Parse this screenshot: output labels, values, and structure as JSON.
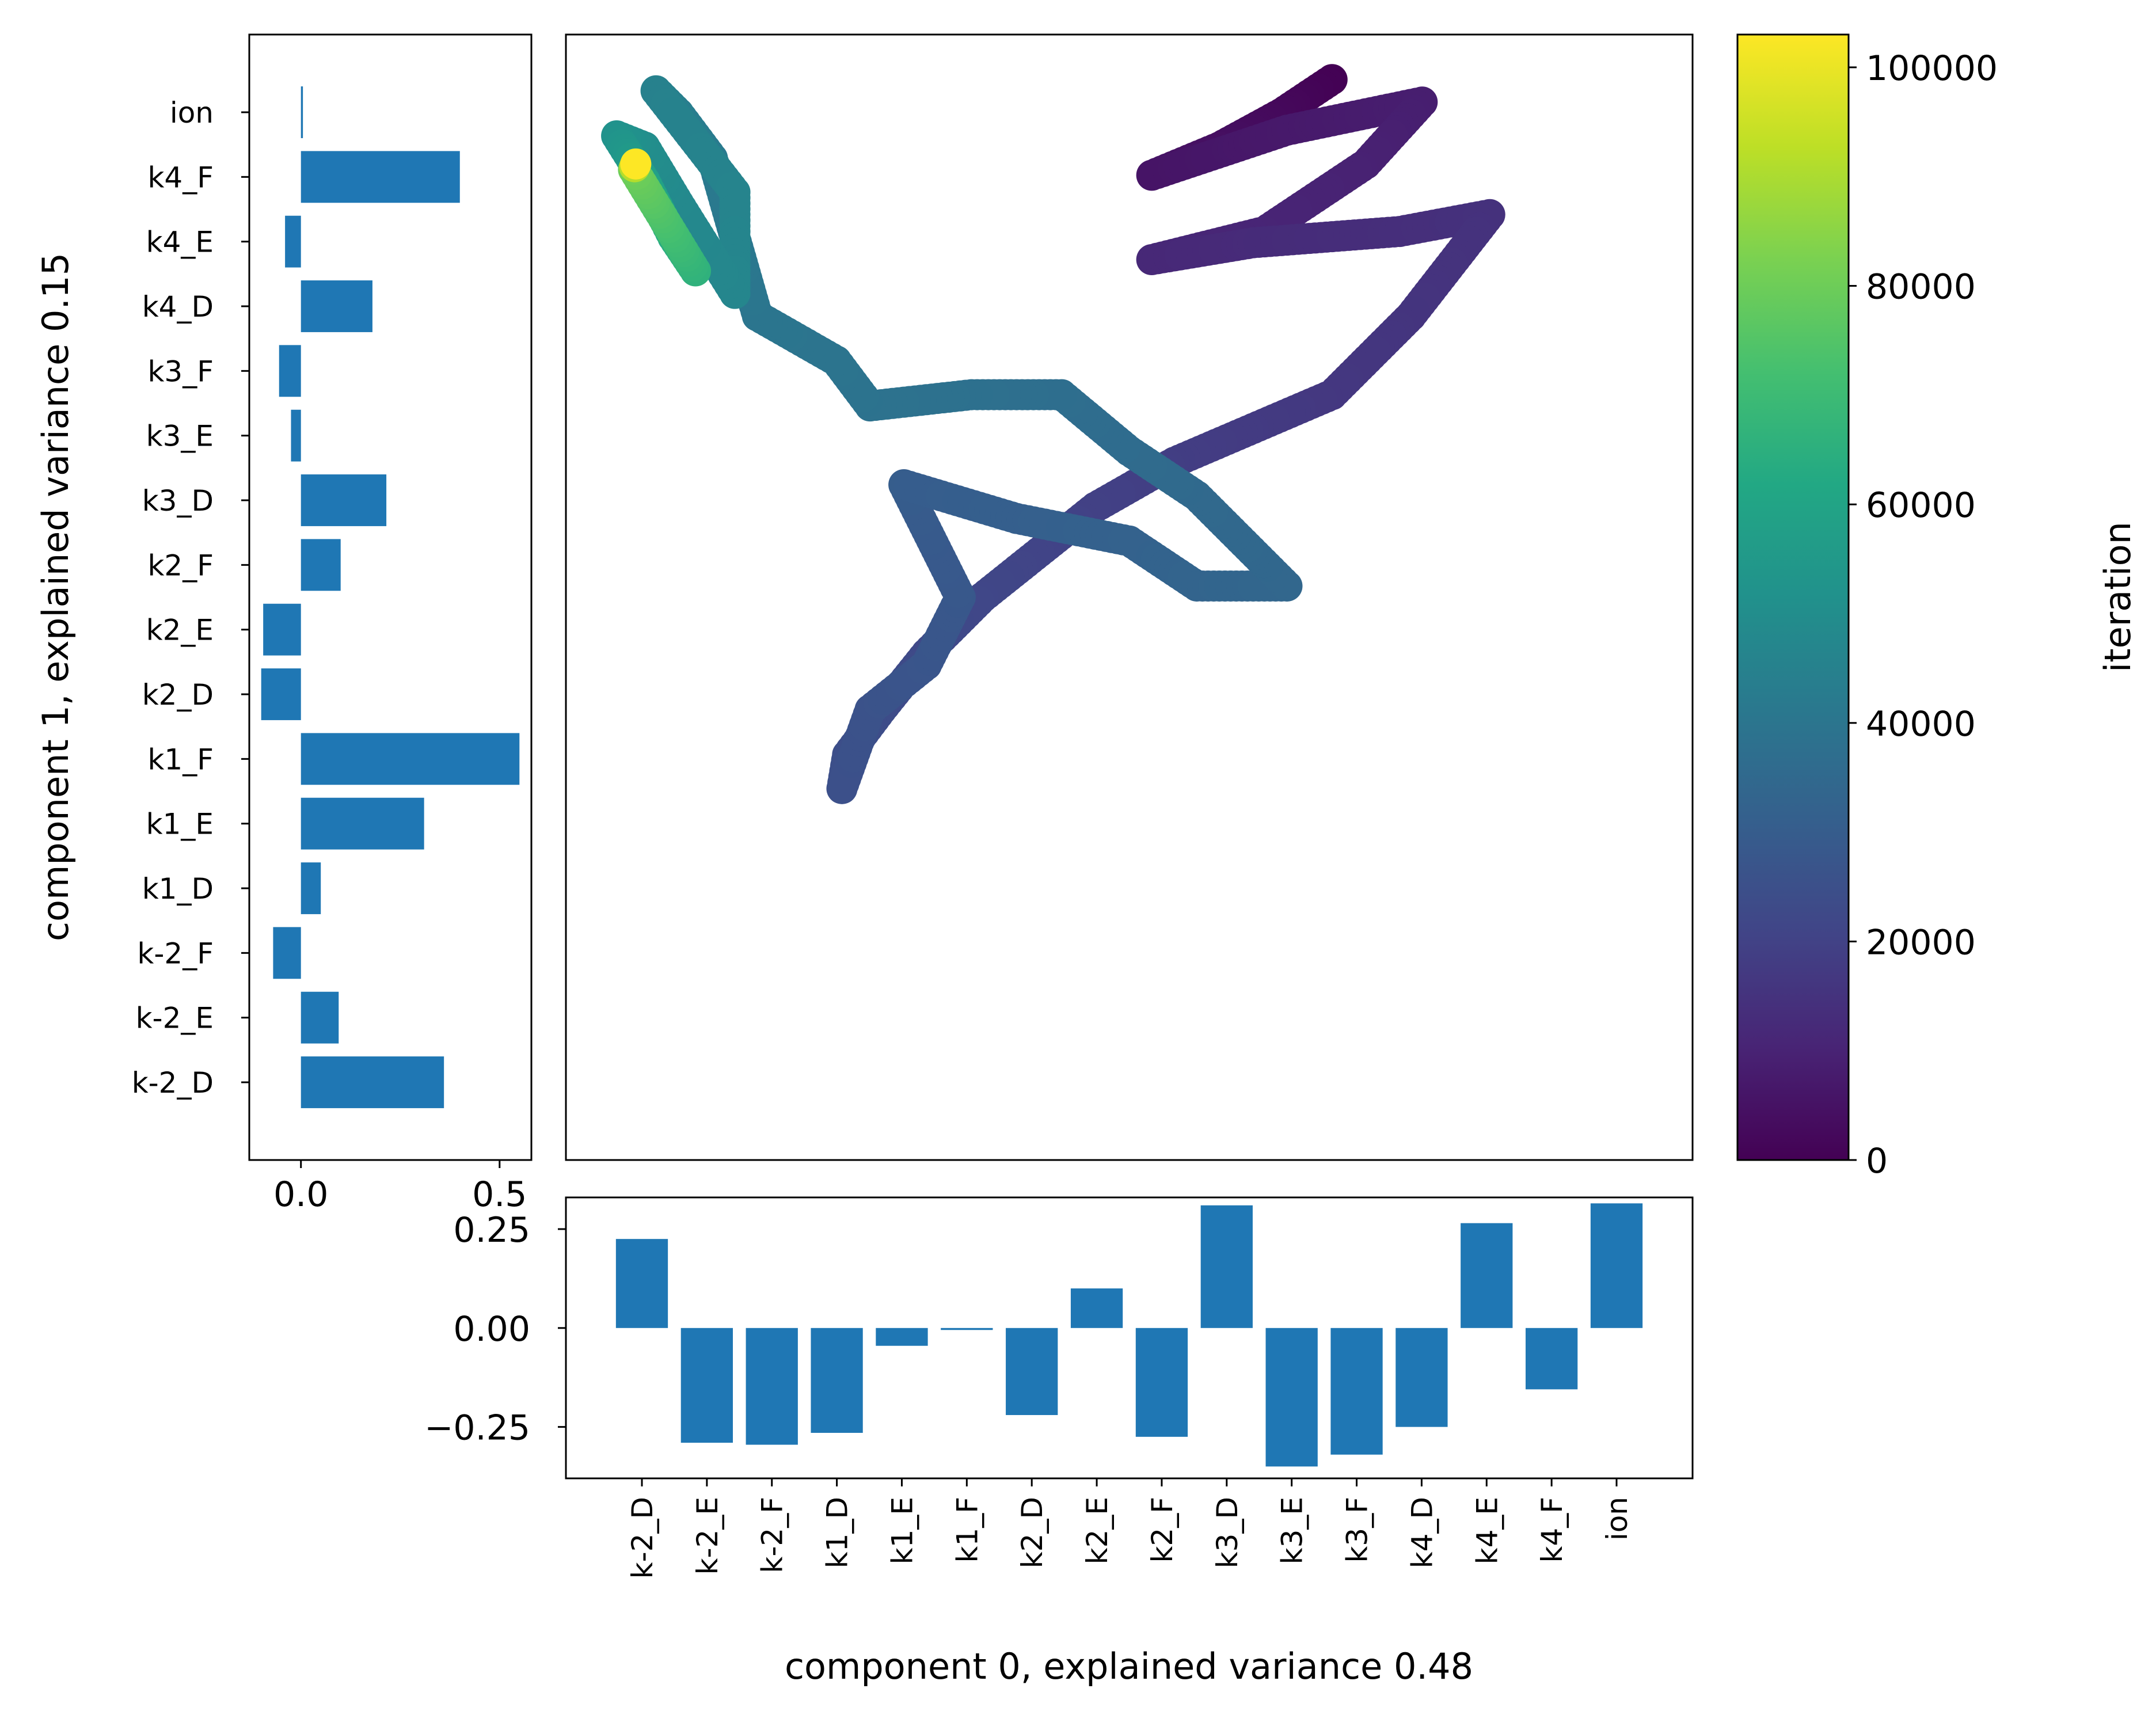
{
  "chart_data": [
    {
      "id": "loadings_component_1",
      "type": "bar",
      "orientation": "horizontal",
      "categories": [
        "ion",
        "k4_F",
        "k4_E",
        "k4_D",
        "k3_F",
        "k3_E",
        "k3_D",
        "k2_F",
        "k2_E",
        "k2_D",
        "k1_F",
        "k1_E",
        "k1_D",
        "k-2_F",
        "k-2_E",
        "k-2_D"
      ],
      "values": [
        0.005,
        0.4,
        -0.04,
        0.18,
        -0.055,
        -0.025,
        0.215,
        0.1,
        -0.095,
        -0.1,
        0.55,
        0.31,
        0.05,
        -0.07,
        0.095,
        0.36
      ],
      "xticks": [
        "0.0",
        "0.5"
      ],
      "xlim": [
        -0.13,
        0.58
      ],
      "ylabel": "component 1, explained variance 0.15",
      "bar_color": "#1f77b4"
    },
    {
      "id": "loadings_component_0",
      "type": "bar",
      "orientation": "vertical",
      "categories": [
        "k-2_D",
        "k-2_E",
        "k-2_F",
        "k1_D",
        "k1_E",
        "k1_F",
        "k2_D",
        "k2_E",
        "k2_F",
        "k3_D",
        "k3_E",
        "k3_F",
        "k4_D",
        "k4_E",
        "k4_F",
        "ion"
      ],
      "values": [
        0.225,
        -0.29,
        -0.295,
        -0.265,
        -0.045,
        -0.005,
        -0.22,
        0.1,
        -0.275,
        0.31,
        -0.35,
        -0.32,
        -0.25,
        0.265,
        -0.155,
        0.315
      ],
      "yticks": [
        "0.25",
        "0.00",
        "−0.25"
      ],
      "ylim": [
        -0.38,
        0.33
      ],
      "xlabel": "component 0, explained variance 0.48",
      "bar_color": "#1f77b4"
    },
    {
      "id": "pca_trajectory",
      "type": "scatter",
      "colorbar_label": "iteration",
      "colorbar_ticks": [
        "0",
        "20000",
        "40000",
        "60000",
        "80000",
        "100000"
      ],
      "colorbar_range": [
        0,
        103000
      ],
      "colormap": "viridis",
      "xlim": [
        0,
        1000
      ],
      "ylim": [
        0,
        1000
      ],
      "path": [
        {
          "x": 680,
          "y": 40,
          "iter": 0
        },
        {
          "x": 635,
          "y": 70,
          "iter": 2000
        },
        {
          "x": 580,
          "y": 100,
          "iter": 4000
        },
        {
          "x": 520,
          "y": 125,
          "iter": 5500
        },
        {
          "x": 640,
          "y": 85,
          "iter": 7000
        },
        {
          "x": 760,
          "y": 60,
          "iter": 8500
        },
        {
          "x": 710,
          "y": 115,
          "iter": 9500
        },
        {
          "x": 620,
          "y": 175,
          "iter": 10500
        },
        {
          "x": 520,
          "y": 200,
          "iter": 11500
        },
        {
          "x": 610,
          "y": 185,
          "iter": 12500
        },
        {
          "x": 740,
          "y": 175,
          "iter": 13500
        },
        {
          "x": 820,
          "y": 160,
          "iter": 14500
        },
        {
          "x": 750,
          "y": 250,
          "iter": 15500
        },
        {
          "x": 680,
          "y": 320,
          "iter": 16500
        },
        {
          "x": 610,
          "y": 350,
          "iter": 17500
        },
        {
          "x": 540,
          "y": 380,
          "iter": 18500
        },
        {
          "x": 470,
          "y": 420,
          "iter": 19500
        },
        {
          "x": 420,
          "y": 460,
          "iter": 20500
        },
        {
          "x": 370,
          "y": 500,
          "iter": 21500
        },
        {
          "x": 320,
          "y": 550,
          "iter": 22500
        },
        {
          "x": 280,
          "y": 600,
          "iter": 23500
        },
        {
          "x": 250,
          "y": 640,
          "iter": 24500
        },
        {
          "x": 245,
          "y": 670,
          "iter": 25000
        },
        {
          "x": 270,
          "y": 600,
          "iter": 26000
        },
        {
          "x": 320,
          "y": 560,
          "iter": 27000
        },
        {
          "x": 350,
          "y": 500,
          "iter": 28000
        },
        {
          "x": 320,
          "y": 440,
          "iter": 29000
        },
        {
          "x": 300,
          "y": 400,
          "iter": 30000
        },
        {
          "x": 400,
          "y": 430,
          "iter": 31000
        },
        {
          "x": 500,
          "y": 450,
          "iter": 32000
        },
        {
          "x": 560,
          "y": 490,
          "iter": 33000
        },
        {
          "x": 640,
          "y": 490,
          "iter": 34000
        },
        {
          "x": 560,
          "y": 410,
          "iter": 35000
        },
        {
          "x": 500,
          "y": 370,
          "iter": 36000
        },
        {
          "x": 440,
          "y": 320,
          "iter": 37000
        },
        {
          "x": 360,
          "y": 320,
          "iter": 38000
        },
        {
          "x": 270,
          "y": 330,
          "iter": 38800
        },
        {
          "x": 240,
          "y": 290,
          "iter": 39500
        },
        {
          "x": 170,
          "y": 250,
          "iter": 40000
        },
        {
          "x": 150,
          "y": 180,
          "iter": 41000
        },
        {
          "x": 130,
          "y": 110,
          "iter": 42000
        },
        {
          "x": 100,
          "y": 70,
          "iter": 43500
        },
        {
          "x": 80,
          "y": 50,
          "iter": 45000
        },
        {
          "x": 150,
          "y": 140,
          "iter": 46000
        },
        {
          "x": 150,
          "y": 230,
          "iter": 47000
        },
        {
          "x": 100,
          "y": 150,
          "iter": 48000
        },
        {
          "x": 70,
          "y": 100,
          "iter": 50000
        },
        {
          "x": 45,
          "y": 90,
          "iter": 52000
        },
        {
          "x": 70,
          "y": 130,
          "iter": 58000
        },
        {
          "x": 95,
          "y": 180,
          "iter": 64000
        },
        {
          "x": 115,
          "y": 210,
          "iter": 66000
        },
        {
          "x": 60,
          "y": 120,
          "iter": 80000
        },
        {
          "x": 62,
          "y": 115,
          "iter": 103000
        }
      ]
    }
  ]
}
